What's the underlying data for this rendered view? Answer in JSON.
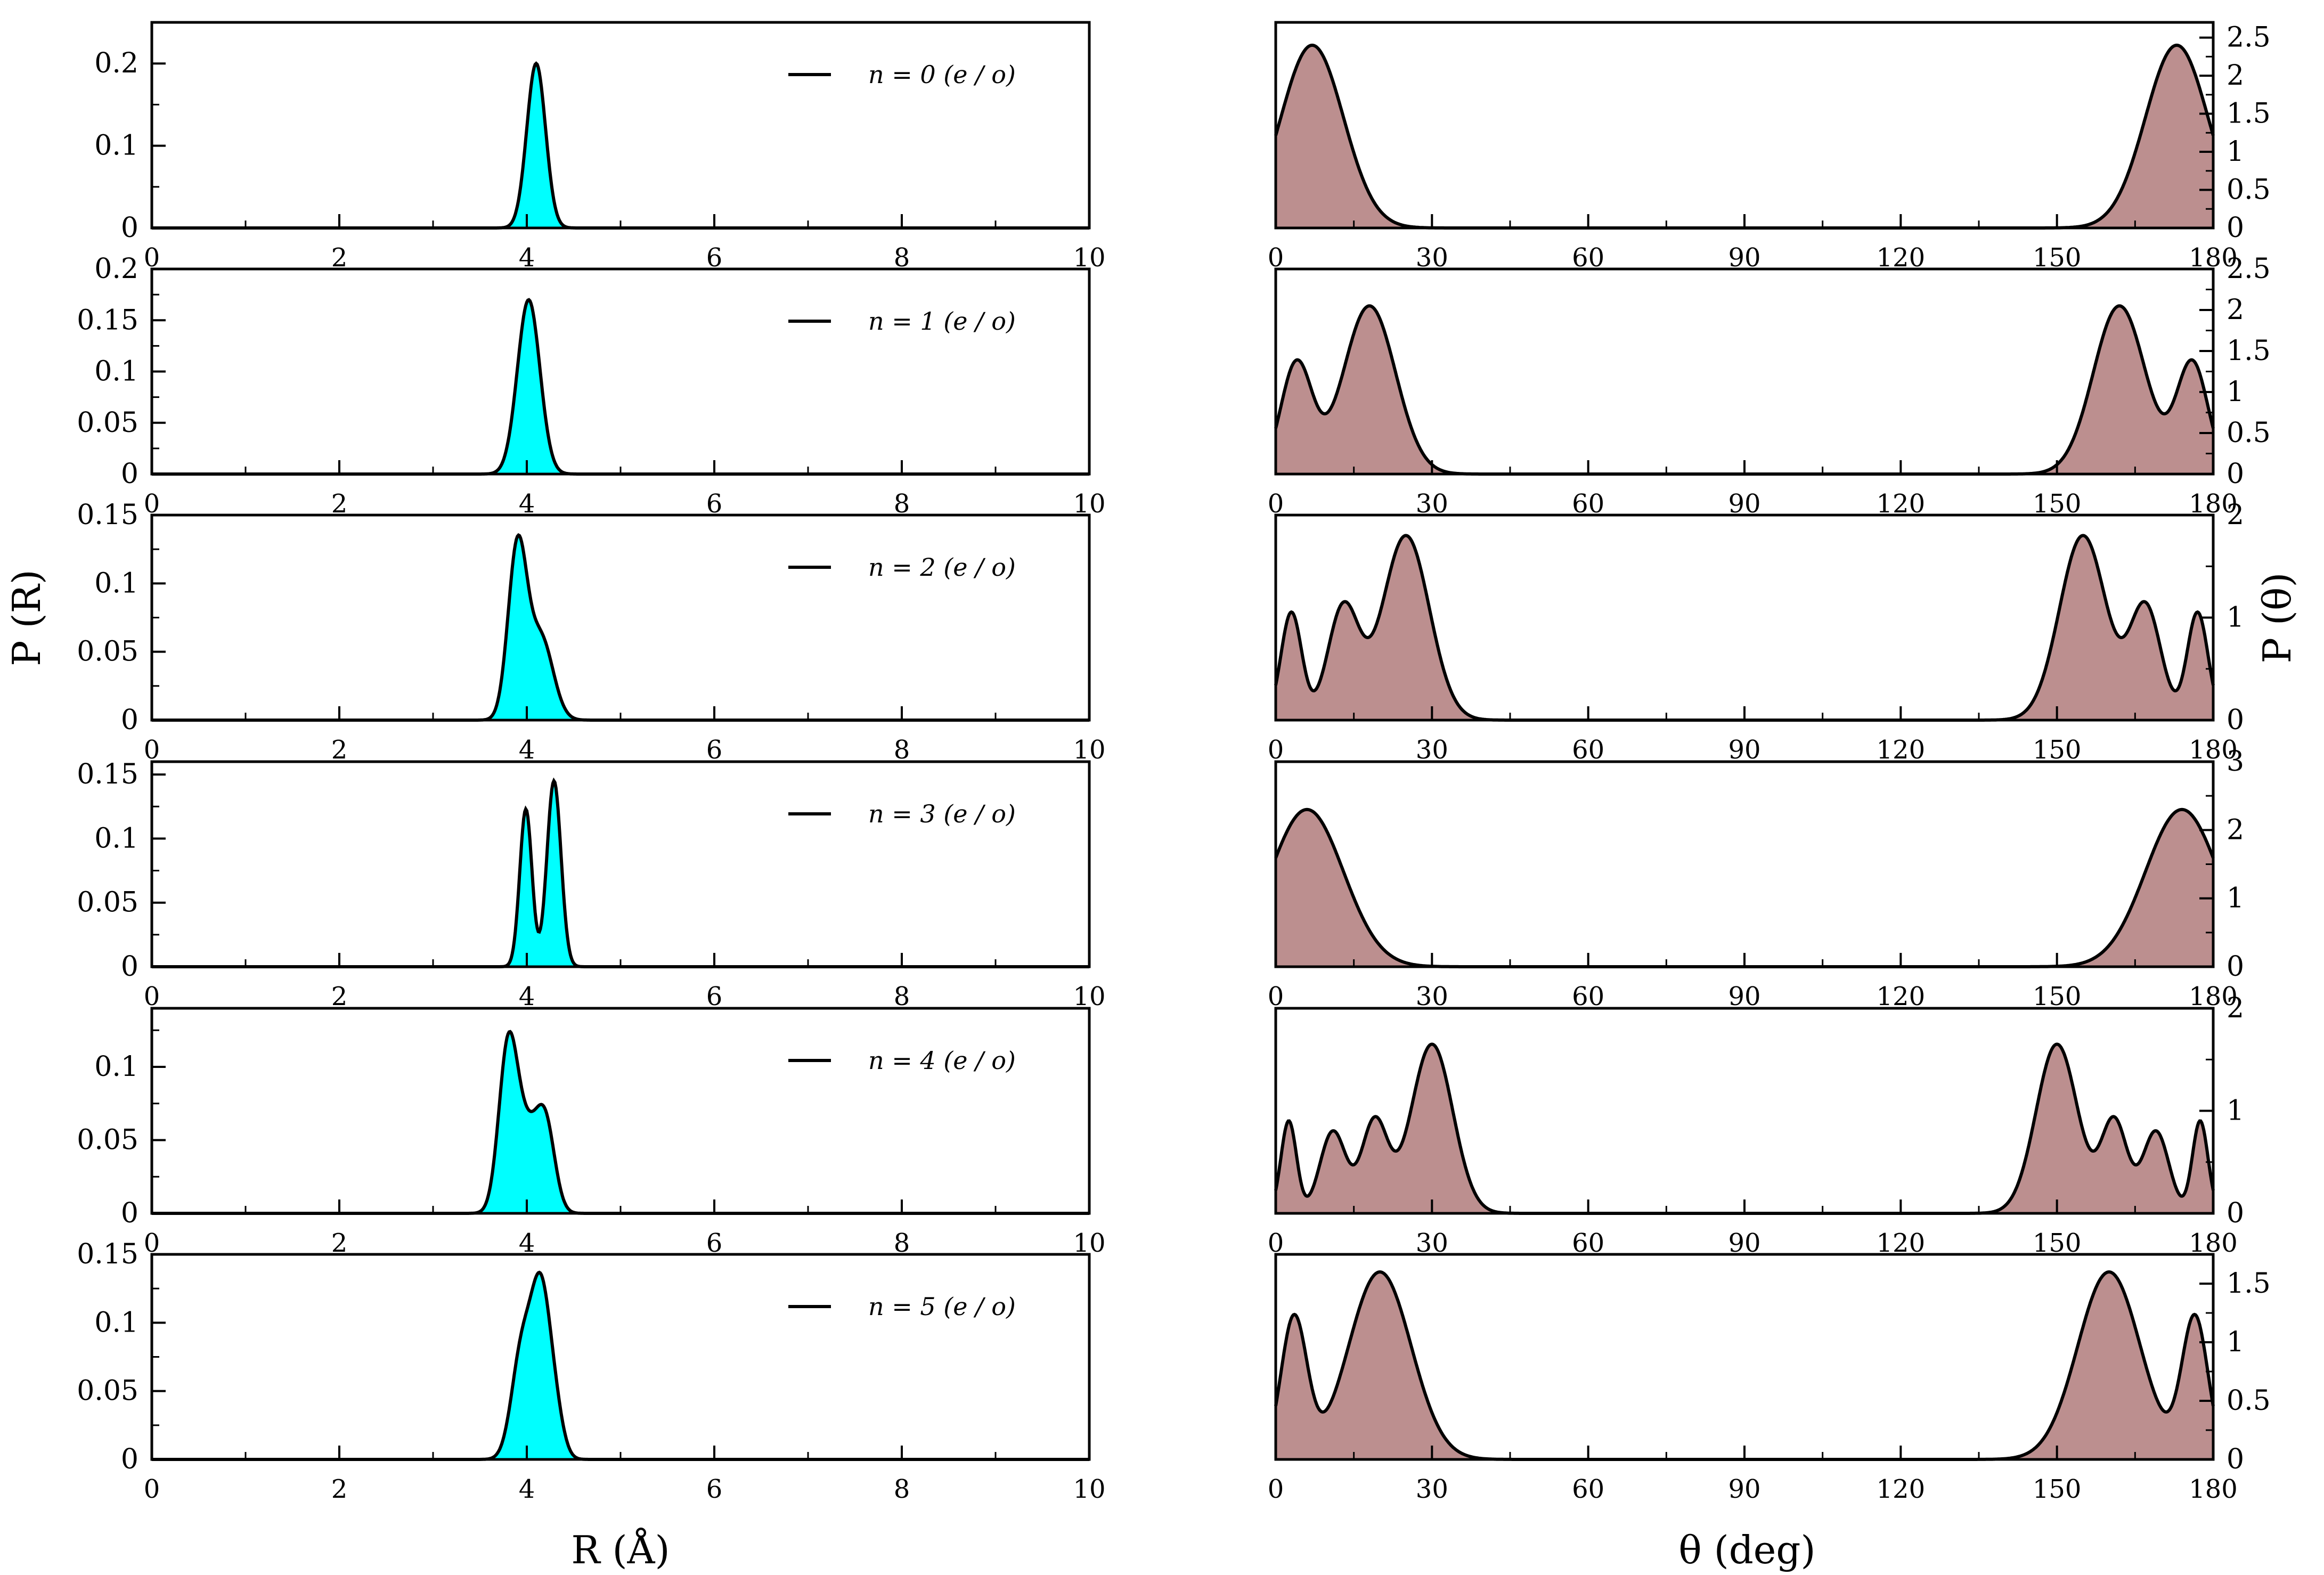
{
  "figure": {
    "left_ylabel": "P (R)",
    "right_ylabel": "P (θ)",
    "left_xlabel": "R (Å)",
    "right_xlabel": "θ (deg)"
  },
  "colors": {
    "r_fill": "#00ffff",
    "theta_fill": "#bc8f8f",
    "line": "#000000"
  },
  "chart_data": [
    {
      "type": "area",
      "id": "R-n0",
      "legend": "n = 0 (e / o)",
      "xlim": [
        0,
        10
      ],
      "ylim": [
        0,
        0.25
      ],
      "xticks": [
        0,
        2,
        4,
        6,
        8,
        10
      ],
      "xtick_labels": [
        "0",
        "2",
        "4",
        "6",
        "8",
        "10"
      ],
      "yticks": [
        0,
        0.1,
        0.2
      ],
      "ytick_labels": [
        "0",
        "0.1",
        "0.2"
      ],
      "peaks": [
        {
          "center": 4.1,
          "height": 0.2,
          "width": 0.1
        }
      ]
    },
    {
      "type": "area",
      "id": "R-n1",
      "legend": "n = 1 (e / o)",
      "xlim": [
        0,
        10
      ],
      "ylim": [
        0,
        0.2
      ],
      "xticks": [
        0,
        2,
        4,
        6,
        8,
        10
      ],
      "xtick_labels": [
        "0",
        "2",
        "4",
        "6",
        "8",
        "10"
      ],
      "yticks": [
        0,
        0.05,
        0.1,
        0.15,
        0.2
      ],
      "ytick_labels": [
        "0",
        "0.05",
        "0.1",
        "0.15",
        "0.2"
      ],
      "peaks": [
        {
          "center": 4.02,
          "height": 0.17,
          "width": 0.12
        }
      ]
    },
    {
      "type": "area",
      "id": "R-n2",
      "legend": "n = 2 (e / o)",
      "xlim": [
        0,
        10
      ],
      "ylim": [
        0,
        0.15
      ],
      "xticks": [
        0,
        2,
        4,
        6,
        8,
        10
      ],
      "xtick_labels": [
        "0",
        "2",
        "4",
        "6",
        "8",
        "10"
      ],
      "yticks": [
        0,
        0.05,
        0.1,
        0.15
      ],
      "ytick_labels": [
        "0",
        "0.05",
        "0.1",
        "0.15"
      ],
      "peaks": [
        {
          "center": 3.9,
          "height": 0.125,
          "width": 0.1
        },
        {
          "center": 4.15,
          "height": 0.06,
          "width": 0.13
        }
      ]
    },
    {
      "type": "area",
      "id": "R-n3",
      "legend": "n = 3 (e / o)",
      "xlim": [
        0,
        10
      ],
      "ylim": [
        0,
        0.16
      ],
      "xticks": [
        0,
        2,
        4,
        6,
        8,
        10
      ],
      "xtick_labels": [
        "0",
        "2",
        "4",
        "6",
        "8",
        "10"
      ],
      "yticks": [
        0,
        0.05,
        0.1,
        0.15
      ],
      "ytick_labels": [
        "0",
        "0.05",
        "0.1",
        "0.15"
      ],
      "peaks": [
        {
          "center": 3.99,
          "height": 0.123,
          "width": 0.065
        },
        {
          "center": 4.29,
          "height": 0.145,
          "width": 0.075
        }
      ]
    },
    {
      "type": "area",
      "id": "R-n4",
      "legend": "n = 4 (e / o)",
      "xlim": [
        0,
        10
      ],
      "ylim": [
        0,
        0.14
      ],
      "xticks": [
        0,
        2,
        4,
        6,
        8,
        10
      ],
      "xtick_labels": [
        "0",
        "2",
        "4",
        "6",
        "8",
        "10"
      ],
      "yticks": [
        0,
        0.05,
        0.1
      ],
      "ytick_labels": [
        "0",
        "0.05",
        "0.1"
      ],
      "peaks": [
        {
          "center": 3.8,
          "height": 0.11,
          "width": 0.1
        },
        {
          "center": 4.0,
          "height": 0.05,
          "width": 0.12
        },
        {
          "center": 4.2,
          "height": 0.058,
          "width": 0.1
        }
      ]
    },
    {
      "type": "area",
      "id": "R-n5",
      "legend": "n = 5 (e / o)",
      "xlim": [
        0,
        10
      ],
      "ylim": [
        0,
        0.15
      ],
      "xticks": [
        0,
        2,
        4,
        6,
        8,
        10
      ],
      "xtick_labels": [
        "0",
        "2",
        "4",
        "6",
        "8",
        "10"
      ],
      "yticks": [
        0,
        0.05,
        0.1,
        0.15
      ],
      "ytick_labels": [
        "0",
        "0.05",
        "0.1",
        "0.15"
      ],
      "peaks": [
        {
          "center": 3.95,
          "height": 0.08,
          "width": 0.11
        },
        {
          "center": 4.15,
          "height": 0.113,
          "width": 0.1
        },
        {
          "center": 4.3,
          "height": 0.03,
          "width": 0.09
        }
      ]
    },
    {
      "type": "area",
      "id": "theta-n0",
      "xlim": [
        0,
        180
      ],
      "ylim": [
        0,
        2.7
      ],
      "xticks": [
        0,
        30,
        60,
        90,
        120,
        150,
        180
      ],
      "xtick_labels": [
        "0",
        "30",
        "60",
        "90",
        "120",
        "150",
        "180"
      ],
      "yticks": [
        0,
        0.5,
        1,
        1.5,
        2,
        2.5
      ],
      "ytick_labels": [
        "0",
        "0.5",
        "1",
        "1.5",
        "2",
        "2.5"
      ],
      "peaks": [
        {
          "center": 7,
          "height": 2.4,
          "width": 6
        },
        {
          "center": 173,
          "height": 2.4,
          "width": 6
        }
      ]
    },
    {
      "type": "area",
      "id": "theta-n1",
      "xlim": [
        0,
        180
      ],
      "ylim": [
        0,
        2.5
      ],
      "xticks": [
        0,
        30,
        60,
        90,
        120,
        150,
        180
      ],
      "xtick_labels": [
        "0",
        "30",
        "60",
        "90",
        "120",
        "150",
        "180"
      ],
      "yticks": [
        0,
        0.5,
        1,
        1.5,
        2,
        2.5
      ],
      "ytick_labels": [
        "0",
        "0.5",
        "1",
        "1.5",
        "2",
        "2.5"
      ],
      "peaks": [
        {
          "center": 4,
          "height": 1.35,
          "width": 3
        },
        {
          "center": 18,
          "height": 2.05,
          "width": 5
        },
        {
          "center": 162,
          "height": 2.05,
          "width": 5
        },
        {
          "center": 176,
          "height": 1.35,
          "width": 3
        }
      ]
    },
    {
      "type": "area",
      "id": "theta-n2",
      "xlim": [
        0,
        180
      ],
      "ylim": [
        0,
        2
      ],
      "xticks": [
        0,
        30,
        60,
        90,
        120,
        150,
        180
      ],
      "xtick_labels": [
        "0",
        "30",
        "60",
        "90",
        "120",
        "150",
        "180"
      ],
      "yticks": [
        0,
        1,
        2
      ],
      "ytick_labels": [
        "0",
        "1",
        "2"
      ],
      "peaks": [
        {
          "center": 3,
          "height": 1.05,
          "width": 2
        },
        {
          "center": 13,
          "height": 1.1,
          "width": 3
        },
        {
          "center": 25,
          "height": 1.8,
          "width": 4.5
        },
        {
          "center": 155,
          "height": 1.8,
          "width": 4.5
        },
        {
          "center": 167,
          "height": 1.1,
          "width": 3
        },
        {
          "center": 177,
          "height": 1.05,
          "width": 2
        }
      ]
    },
    {
      "type": "area",
      "id": "theta-n3",
      "xlim": [
        0,
        180
      ],
      "ylim": [
        0,
        3
      ],
      "xticks": [
        0,
        30,
        60,
        90,
        120,
        150,
        180
      ],
      "xtick_labels": [
        "0",
        "30",
        "60",
        "90",
        "120",
        "150",
        "180"
      ],
      "yticks": [
        0,
        1,
        2,
        3
      ],
      "ytick_labels": [
        "0",
        "1",
        "2",
        "3"
      ],
      "peaks": [
        {
          "center": 6,
          "height": 2.3,
          "width": 7
        },
        {
          "center": 174,
          "height": 2.3,
          "width": 7
        }
      ]
    },
    {
      "type": "area",
      "id": "theta-n4",
      "xlim": [
        0,
        180
      ],
      "ylim": [
        0,
        2
      ],
      "xticks": [
        0,
        30,
        60,
        90,
        120,
        150,
        180
      ],
      "xtick_labels": [
        "0",
        "30",
        "60",
        "90",
        "120",
        "150",
        "180"
      ],
      "yticks": [
        0,
        1,
        2
      ],
      "ytick_labels": [
        "0",
        "1",
        "2"
      ],
      "peaks": [
        {
          "center": 2.5,
          "height": 0.9,
          "width": 1.5
        },
        {
          "center": 11,
          "height": 0.8,
          "width": 2.5
        },
        {
          "center": 19,
          "height": 0.9,
          "width": 2.5
        },
        {
          "center": 30,
          "height": 1.65,
          "width": 4
        },
        {
          "center": 150,
          "height": 1.65,
          "width": 4
        },
        {
          "center": 161,
          "height": 0.9,
          "width": 2.5
        },
        {
          "center": 169,
          "height": 0.8,
          "width": 2.5
        },
        {
          "center": 177.5,
          "height": 0.9,
          "width": 1.5
        }
      ]
    },
    {
      "type": "area",
      "id": "theta-n5",
      "xlim": [
        0,
        180
      ],
      "ylim": [
        0,
        1.75
      ],
      "xticks": [
        0,
        30,
        60,
        90,
        120,
        150,
        180
      ],
      "xtick_labels": [
        "0",
        "30",
        "60",
        "90",
        "120",
        "150",
        "180"
      ],
      "yticks": [
        0,
        0.5,
        1,
        1.5
      ],
      "ytick_labels": [
        "0",
        "0.5",
        "1",
        "1.5"
      ],
      "peaks": [
        {
          "center": 3.5,
          "height": 1.2,
          "width": 2.5
        },
        {
          "center": 20,
          "height": 1.6,
          "width": 6
        },
        {
          "center": 160,
          "height": 1.6,
          "width": 6
        },
        {
          "center": 176.5,
          "height": 1.2,
          "width": 2.5
        }
      ]
    }
  ]
}
